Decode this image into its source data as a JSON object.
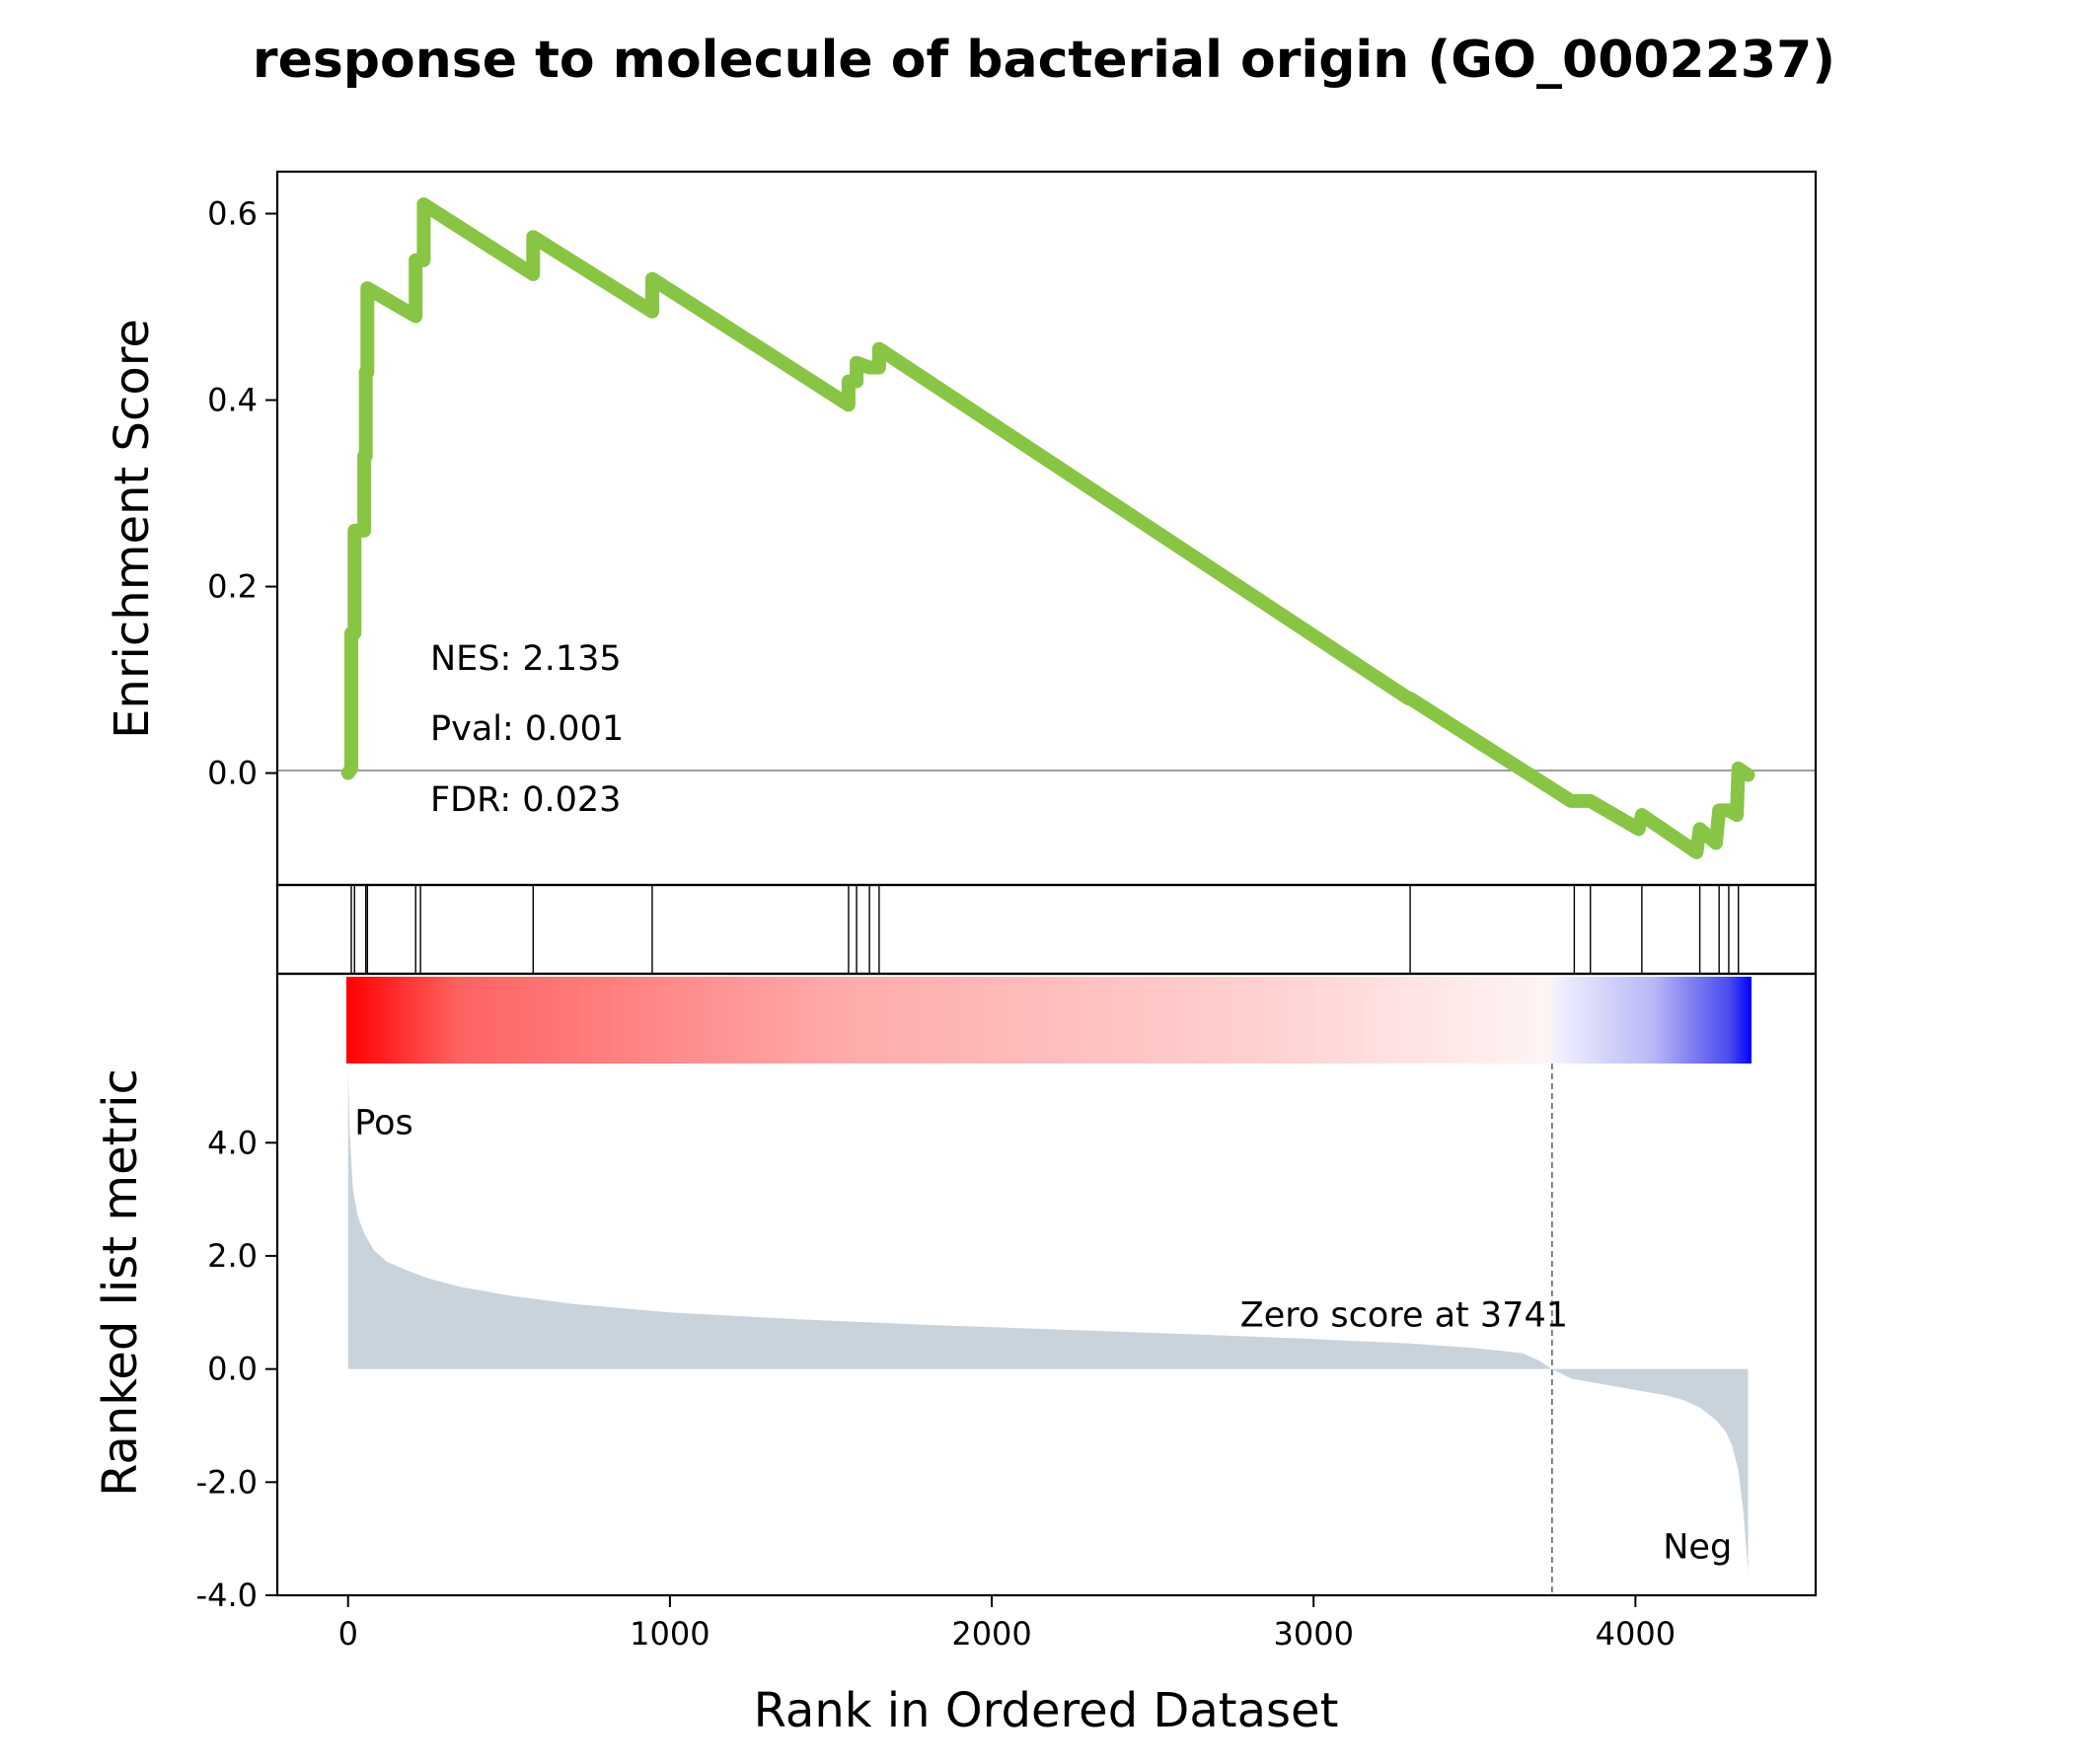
{
  "title": "response to molecule of bacterial origin (GO_0002237)",
  "colors": {
    "es_line": "#88C544",
    "metric_fill": "#C9D3DB",
    "pos": "#FF0000",
    "neg": "#0000FF",
    "zero_line": "#808080"
  },
  "chart_data": [
    {
      "type": "line",
      "panel": "enrichment",
      "ylabel": "Enrichment Score",
      "xlim": [
        -220,
        4560
      ],
      "ylim": [
        -0.12,
        0.645
      ],
      "yticks": [
        0.0,
        0.2,
        0.4,
        0.6
      ],
      "ytick_labels": [
        "0.0",
        "0.2",
        "0.4",
        "0.6"
      ],
      "stats": {
        "nes": "NES: 2.135",
        "pval": "Pval: 0.001",
        "fdr": "FDR: 0.023"
      },
      "series": [
        {
          "x": [
            0,
            0,
            10,
            10,
            20,
            20,
            40,
            40,
            50,
            50,
            55,
            55,
            60,
            60,
            210,
            210,
            225,
            225,
            235,
            235,
            575,
            575,
            945,
            945,
            1555,
            1555,
            1580,
            1580,
            1620,
            1620,
            1650,
            1650,
            3295,
            3300,
            3800,
            3810,
            3840,
            3860,
            4010,
            4020,
            4190,
            4200,
            4250,
            4260,
            4280,
            4290,
            4315,
            4320,
            4350
          ],
          "y": [
            0.0,
            0.0,
            0.005,
            0.15,
            0.15,
            0.26,
            0.26,
            0.26,
            0.26,
            0.34,
            0.34,
            0.43,
            0.43,
            0.52,
            0.49,
            0.55,
            0.55,
            0.55,
            0.55,
            0.61,
            0.535,
            0.575,
            0.495,
            0.53,
            0.395,
            0.42,
            0.42,
            0.44,
            0.435,
            0.435,
            0.435,
            0.455,
            0.08,
            0.08,
            -0.03,
            -0.03,
            -0.03,
            -0.03,
            -0.06,
            -0.045,
            -0.085,
            -0.06,
            -0.075,
            -0.04,
            -0.04,
            -0.04,
            -0.045,
            0.005,
            -0.002
          ]
        }
      ]
    },
    {
      "type": "hits",
      "panel": "gene_hits",
      "x": [
        10,
        20,
        55,
        60,
        210,
        225,
        575,
        945,
        1555,
        1580,
        1620,
        1650,
        3300,
        3810,
        3860,
        4020,
        4200,
        4260,
        4290,
        4320
      ]
    },
    {
      "type": "area",
      "panel": "ranked_metric",
      "xlabel": "Rank in Ordered Dataset",
      "ylabel": "Ranked list metric",
      "xlim": [
        -220,
        4560
      ],
      "ylim": [
        -4.0,
        5.4
      ],
      "xticks": [
        0,
        1000,
        2000,
        3000,
        4000
      ],
      "xtick_labels": [
        "0",
        "1000",
        "2000",
        "3000",
        "4000"
      ],
      "yticks": [
        -4.0,
        -2.0,
        0.0,
        2.0,
        4.0
      ],
      "ytick_labels": [
        "-4.0",
        "-2.0",
        "0.0",
        "2.0",
        "4.0"
      ],
      "pos_label": "Pos",
      "neg_label": "Neg",
      "zero_score_rank": 3741,
      "zero_note": "Zero score at 3741",
      "x": [
        0,
        5,
        15,
        30,
        50,
        80,
        120,
        180,
        250,
        350,
        500,
        700,
        1000,
        1400,
        1800,
        2200,
        2600,
        3000,
        3300,
        3500,
        3650,
        3700,
        3741,
        3800,
        3900,
        4000,
        4100,
        4150,
        4200,
        4250,
        4280,
        4300,
        4320,
        4335,
        4345,
        4350
      ],
      "y": [
        5.3,
        4.2,
        3.2,
        2.7,
        2.4,
        2.1,
        1.9,
        1.75,
        1.6,
        1.45,
        1.3,
        1.15,
        1.0,
        0.88,
        0.78,
        0.7,
        0.62,
        0.53,
        0.45,
        0.37,
        0.28,
        0.15,
        0.0,
        -0.17,
        -0.27,
        -0.37,
        -0.47,
        -0.55,
        -0.68,
        -0.9,
        -1.1,
        -1.35,
        -1.8,
        -2.5,
        -3.2,
        -3.6
      ]
    }
  ]
}
